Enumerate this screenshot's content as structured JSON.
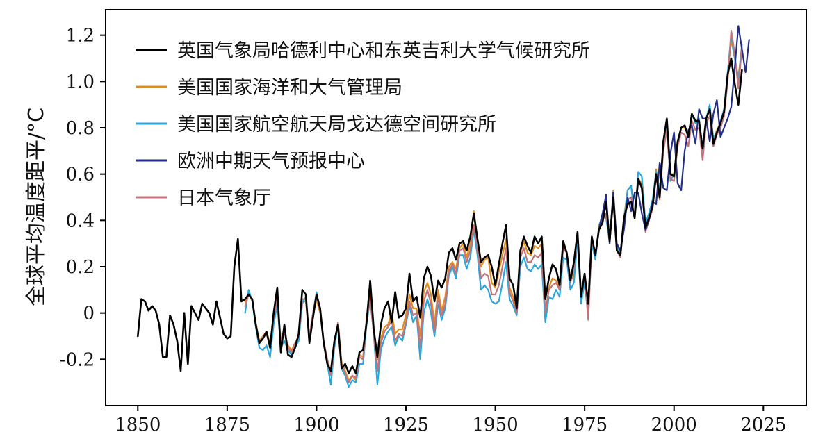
{
  "chart_data": {
    "type": "line",
    "ylabel": "全球平均温度距平/°C",
    "xlim": [
      1841,
      2037
    ],
    "ylim": [
      -0.4,
      1.31
    ],
    "x_ticks": [
      1850,
      1875,
      1900,
      1925,
      1950,
      1975,
      2000,
      2025
    ],
    "x_tick_labels": [
      "1850",
      "1875",
      "1900",
      "1925",
      "1950",
      "1975",
      "2000",
      "2025"
    ],
    "y_ticks": [
      -0.2,
      0,
      0.2,
      0.4,
      0.6,
      0.8,
      1.0,
      1.2
    ],
    "y_tick_labels": [
      "-0.2",
      "0",
      "0.2",
      "0.4",
      "0.6",
      "0.8",
      "1.0",
      "1.2"
    ],
    "grid": false,
    "legend_position": "top-left",
    "series": [
      {
        "name": "英国气象局哈德利中心和东英吉利大学气候研究所",
        "color": "#000000",
        "x_start": 1850,
        "values": [
          -0.1,
          0.06,
          0.05,
          0.01,
          0.03,
          0.01,
          -0.05,
          -0.19,
          -0.19,
          -0.01,
          -0.05,
          -0.12,
          -0.25,
          0.0,
          -0.22,
          0.03,
          0.0,
          -0.03,
          0.04,
          0.02,
          0.0,
          -0.05,
          0.05,
          -0.02,
          -0.09,
          -0.11,
          -0.1,
          0.2,
          0.32,
          0.05,
          0.06,
          0.08,
          0.06,
          -0.05,
          -0.13,
          -0.11,
          -0.08,
          -0.15,
          0.0,
          0.11,
          -0.17,
          -0.05,
          -0.18,
          -0.19,
          -0.15,
          -0.09,
          0.1,
          0.08,
          -0.13,
          -0.02,
          0.08,
          0.02,
          -0.13,
          -0.22,
          -0.25,
          -0.12,
          -0.05,
          -0.24,
          -0.22,
          -0.26,
          -0.23,
          -0.26,
          -0.17,
          -0.16,
          -0.04,
          0.14,
          -0.07,
          -0.19,
          -0.05,
          0.02,
          0.05,
          -0.04,
          0.09,
          -0.02,
          -0.01,
          0.02,
          0.17,
          0.05,
          0.07,
          -0.02,
          0.15,
          0.2,
          0.16,
          0.05,
          0.14,
          0.11,
          0.15,
          0.26,
          0.28,
          0.23,
          0.3,
          0.31,
          0.27,
          0.33,
          0.43,
          0.32,
          0.22,
          0.24,
          0.25,
          0.2,
          0.12,
          0.21,
          0.3,
          0.38,
          0.15,
          0.12,
          0.02,
          0.27,
          0.33,
          0.29,
          0.26,
          0.33,
          0.3,
          0.33,
          0.06,
          0.15,
          0.21,
          0.19,
          0.12,
          0.31,
          0.26,
          0.14,
          0.22,
          0.35,
          0.07,
          0.17,
          0.04,
          0.33,
          0.25,
          0.36,
          0.39,
          0.48,
          0.31,
          0.5,
          0.27,
          0.25,
          0.41,
          0.47,
          0.48,
          0.41,
          0.58,
          0.54,
          0.37,
          0.41,
          0.46,
          0.6,
          0.5,
          0.74,
          0.84,
          0.6,
          0.59,
          0.74,
          0.8,
          0.81,
          0.76,
          0.86,
          0.83,
          0.83,
          0.71,
          0.84,
          0.88,
          0.73,
          0.78,
          0.82,
          0.87,
          1.03,
          1.1,
          0.99,
          0.9,
          1.05
        ]
      },
      {
        "name": "美国国家海洋和大气管理局",
        "color": "#e08c1e",
        "x_start": 1880,
        "values": [
          0.05,
          0.09,
          0.05,
          -0.04,
          -0.12,
          -0.1,
          -0.08,
          -0.13,
          -0.02,
          0.07,
          -0.12,
          -0.08,
          -0.14,
          -0.16,
          -0.13,
          -0.1,
          0.05,
          0.05,
          -0.11,
          -0.01,
          0.06,
          0.0,
          -0.13,
          -0.2,
          -0.26,
          -0.14,
          -0.04,
          -0.21,
          -0.25,
          -0.29,
          -0.27,
          -0.29,
          -0.18,
          -0.19,
          -0.02,
          0.08,
          -0.08,
          -0.2,
          -0.11,
          -0.06,
          -0.05,
          0.0,
          -0.09,
          -0.07,
          -0.07,
          -0.01,
          0.08,
          0.02,
          0.02,
          -0.1,
          0.09,
          0.13,
          0.08,
          -0.05,
          0.1,
          0.01,
          0.07,
          0.2,
          0.22,
          0.19,
          0.28,
          0.3,
          0.24,
          0.3,
          0.44,
          0.32,
          0.2,
          0.23,
          0.24,
          0.13,
          0.11,
          0.18,
          0.25,
          0.32,
          0.11,
          0.07,
          0.0,
          0.26,
          0.31,
          0.26,
          0.25,
          0.29,
          0.28,
          0.3,
          -0.02,
          0.11,
          0.15,
          0.14,
          0.11,
          0.29,
          0.26,
          0.14,
          0.16,
          0.33,
          0.06,
          0.14,
          -0.01,
          0.31,
          0.24,
          0.38,
          0.41,
          0.42,
          0.3,
          0.53,
          0.29,
          0.25,
          0.41,
          0.53,
          0.55,
          0.42,
          0.58,
          0.56,
          0.36,
          0.42,
          0.47,
          0.62,
          0.52,
          0.74,
          0.83,
          0.6,
          0.6,
          0.73,
          0.8,
          0.8,
          0.77,
          0.86,
          0.82,
          0.83,
          0.71,
          0.84,
          0.88,
          0.75,
          0.79,
          0.82,
          0.86,
          1.03,
          1.18,
          1.1,
          1.02,
          1.15
        ]
      },
      {
        "name": "美国国家航空航天局戈达德空间研究所",
        "color": "#2aa7dc",
        "x_start": 1880,
        "values": [
          0.0,
          0.1,
          0.05,
          -0.06,
          -0.15,
          -0.16,
          -0.14,
          -0.19,
          -0.05,
          0.04,
          -0.15,
          -0.12,
          -0.16,
          -0.18,
          -0.15,
          -0.12,
          0.04,
          0.07,
          -0.11,
          0.0,
          0.09,
          0.01,
          -0.13,
          -0.22,
          -0.31,
          -0.15,
          -0.05,
          -0.24,
          -0.27,
          -0.32,
          -0.29,
          -0.3,
          -0.22,
          -0.22,
          -0.05,
          0.06,
          -0.09,
          -0.31,
          -0.16,
          -0.11,
          -0.08,
          -0.06,
          -0.14,
          -0.1,
          -0.12,
          -0.05,
          0.03,
          -0.04,
          -0.01,
          -0.2,
          0.0,
          0.06,
          0.0,
          -0.1,
          0.04,
          -0.03,
          0.02,
          0.16,
          0.2,
          0.15,
          0.25,
          0.25,
          0.19,
          0.24,
          0.36,
          0.25,
          0.1,
          0.12,
          0.1,
          0.05,
          0.04,
          0.05,
          0.13,
          0.22,
          0.06,
          0.03,
          -0.01,
          0.2,
          0.24,
          0.19,
          0.18,
          0.21,
          0.19,
          0.21,
          -0.04,
          0.07,
          0.06,
          0.1,
          0.07,
          0.24,
          0.23,
          0.1,
          0.13,
          0.32,
          0.04,
          0.13,
          -0.01,
          0.3,
          0.23,
          0.37,
          0.43,
          0.41,
          0.31,
          0.52,
          0.29,
          0.26,
          0.4,
          0.53,
          0.55,
          0.41,
          0.61,
          0.59,
          0.39,
          0.43,
          0.49,
          0.61,
          0.53,
          0.72,
          0.81,
          0.57,
          0.6,
          0.74,
          0.8,
          0.81,
          0.76,
          0.86,
          0.82,
          0.84,
          0.7,
          0.84,
          0.9,
          0.75,
          0.78,
          0.83,
          0.88,
          1.04,
          1.2,
          1.1,
          1.0,
          1.16
        ]
      },
      {
        "name": "欧洲中期天气预报中心",
        "color": "#232d8c",
        "x_start": 1979,
        "values": [
          0.36,
          0.43,
          0.51,
          0.3,
          0.52,
          0.3,
          0.27,
          0.36,
          0.5,
          0.44,
          0.52,
          0.52,
          0.43,
          0.36,
          0.4,
          0.48,
          0.47,
          0.65,
          0.54,
          0.53,
          0.69,
          0.78,
          0.56,
          0.53,
          0.7,
          0.79,
          0.81,
          0.73,
          0.88,
          0.84,
          0.84,
          0.74,
          0.86,
          0.92,
          0.76,
          0.8,
          0.84,
          0.89,
          1.06,
          1.24,
          1.14,
          1.04,
          1.18
        ]
      },
      {
        "name": "日本气象厅",
        "color": "#c2747a",
        "x_start": 1880,
        "values": [
          0.03,
          0.08,
          0.06,
          -0.05,
          -0.13,
          -0.11,
          -0.09,
          -0.14,
          -0.02,
          0.06,
          -0.12,
          -0.08,
          -0.15,
          -0.17,
          -0.13,
          -0.1,
          0.06,
          0.06,
          -0.1,
          0.0,
          0.08,
          0.01,
          -0.12,
          -0.2,
          -0.27,
          -0.13,
          -0.04,
          -0.22,
          -0.26,
          -0.3,
          -0.27,
          -0.28,
          -0.19,
          -0.2,
          -0.03,
          0.06,
          -0.09,
          -0.25,
          -0.13,
          -0.08,
          -0.06,
          -0.03,
          -0.12,
          -0.09,
          -0.1,
          -0.04,
          0.05,
          -0.01,
          0.0,
          -0.15,
          0.05,
          0.1,
          0.04,
          -0.08,
          0.07,
          -0.01,
          0.04,
          0.18,
          0.21,
          0.17,
          0.27,
          0.28,
          0.22,
          0.27,
          0.38,
          0.28,
          0.15,
          0.17,
          0.16,
          0.08,
          0.08,
          0.12,
          0.2,
          0.28,
          0.09,
          0.05,
          0.0,
          0.24,
          0.28,
          0.22,
          0.22,
          0.25,
          0.24,
          0.26,
          0.0,
          0.1,
          0.12,
          0.13,
          0.1,
          0.28,
          0.26,
          0.13,
          0.2,
          0.35,
          0.08,
          0.16,
          -0.03,
          0.31,
          0.26,
          0.36,
          0.4,
          0.43,
          0.32,
          0.48,
          0.27,
          0.24,
          0.4,
          0.49,
          0.5,
          0.42,
          0.57,
          0.55,
          0.35,
          0.4,
          0.45,
          0.59,
          0.49,
          0.7,
          0.79,
          0.58,
          0.57,
          0.72,
          0.78,
          0.77,
          0.72,
          0.83,
          0.79,
          0.8,
          0.66,
          0.82,
          0.85,
          0.72,
          0.77,
          0.8,
          0.85,
          1.0,
          1.22,
          1.12,
          0.97,
          1.15
        ]
      }
    ]
  }
}
